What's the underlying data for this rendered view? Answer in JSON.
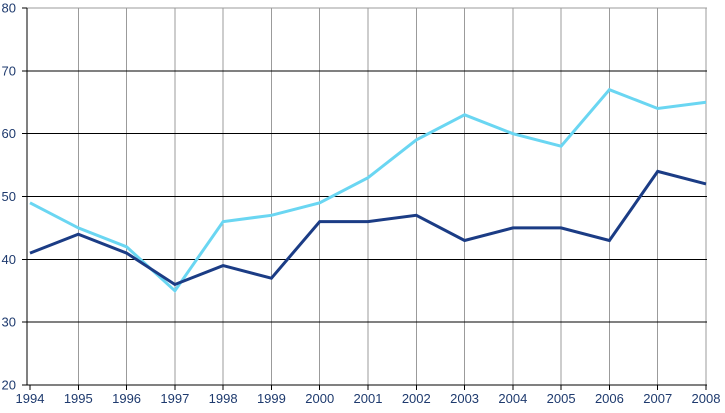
{
  "chart_data": {
    "type": "line",
    "title": "",
    "xlabel": "",
    "ylabel": "",
    "categories": [
      "1994",
      "1995",
      "1996",
      "1997",
      "1998",
      "1999",
      "2000",
      "2001",
      "2002",
      "2003",
      "2004",
      "2005",
      "2006",
      "2007",
      "2008"
    ],
    "series": [
      {
        "name": "upper-light-blue-line",
        "color": "#6AD6F2",
        "values": [
          49,
          45,
          42,
          35,
          46,
          47,
          49,
          53,
          59,
          63,
          60,
          58,
          67,
          64,
          65
        ]
      },
      {
        "name": "lower-dark-blue-line",
        "color": "#1B3C85",
        "values": [
          41,
          44,
          41,
          36,
          39,
          37,
          46,
          46,
          47,
          43,
          45,
          45,
          43,
          54,
          52
        ]
      }
    ],
    "ylim": [
      20,
      80
    ],
    "y_ticks": [
      20,
      30,
      40,
      50,
      60,
      70,
      80
    ],
    "grid": {
      "horizontal": true,
      "vertical": true
    },
    "legend": "none",
    "colors": {
      "background": "#FFFFFF",
      "horizontal_gridline": "#000000",
      "vertical_gridline": "#9B9B9B",
      "plot_border": "#9B9B9B",
      "axis_line": "#000000",
      "tick_mark": "#000000",
      "tick_label": "#1E3A6E"
    }
  }
}
